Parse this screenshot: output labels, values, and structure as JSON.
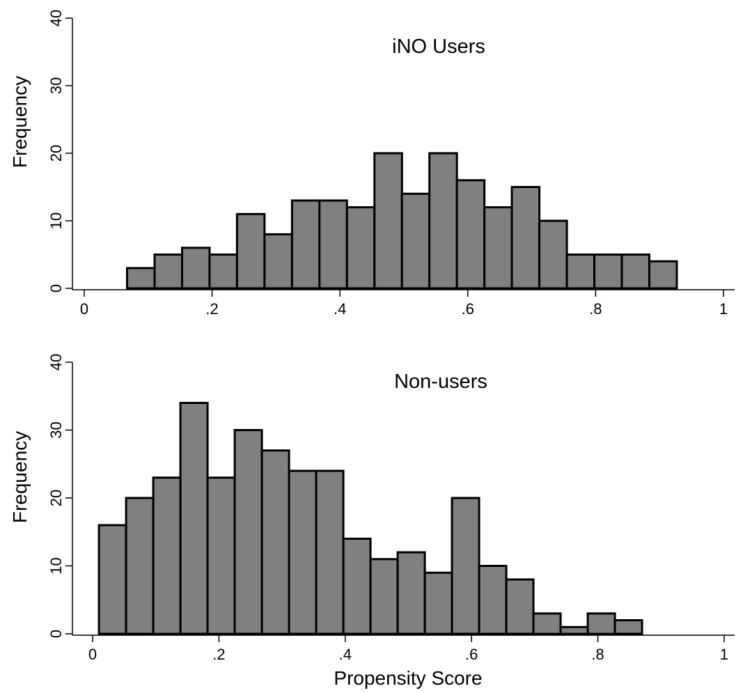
{
  "chart_data": [
    {
      "type": "bar",
      "title": "iNO Users",
      "ylabel": "Frequency",
      "xlabel": "",
      "xlim": [
        0,
        1
      ],
      "ylim": [
        0,
        40
      ],
      "xticks": [
        "0",
        ".2",
        ".4",
        ".6",
        ".8",
        "1"
      ],
      "yticks": [
        "0",
        "10",
        "20",
        "30",
        "40"
      ],
      "bin_width": 0.043,
      "bin_start": 0.067,
      "values": [
        3,
        5,
        6,
        5,
        11,
        8,
        13,
        13,
        12,
        20,
        14,
        20,
        16,
        12,
        15,
        10,
        5,
        5,
        5,
        4
      ],
      "grid": false
    },
    {
      "type": "bar",
      "title": "Non-users",
      "ylabel": "Frequency",
      "xlabel": "Propensity Score",
      "xlim": [
        0,
        1
      ],
      "ylim": [
        0,
        40
      ],
      "xticks": [
        "0",
        ".2",
        ".4",
        ".6",
        ".8",
        "1"
      ],
      "yticks": [
        "0",
        "10",
        "20",
        "30",
        "40"
      ],
      "bin_width": 0.043,
      "bin_start": 0.01,
      "values": [
        16,
        20,
        23,
        34,
        23,
        30,
        27,
        24,
        24,
        14,
        11,
        12,
        9,
        20,
        10,
        8,
        3,
        1,
        3,
        2
      ],
      "grid": false
    }
  ]
}
